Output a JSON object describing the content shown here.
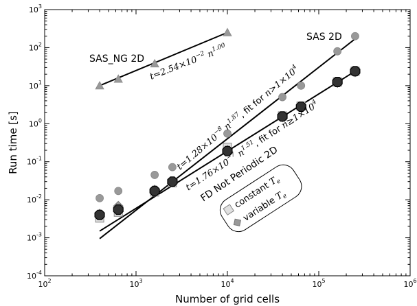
{
  "chart_data": {
    "type": "scatter",
    "title": "",
    "xlabel": "Number of grid cells",
    "ylabel": "Run time [s]",
    "xscale": "log",
    "yscale": "log",
    "xlim": [
      100,
      1000000
    ],
    "ylim": [
      0.0001,
      1000
    ],
    "x_ticks": [
      {
        "base": "10",
        "exp": "2"
      },
      {
        "base": "10",
        "exp": "3"
      },
      {
        "base": "10",
        "exp": "4"
      },
      {
        "base": "10",
        "exp": "5"
      },
      {
        "base": "10",
        "exp": "6"
      }
    ],
    "y_ticks": [
      {
        "base": "10",
        "exp": "-4"
      },
      {
        "base": "10",
        "exp": "-3"
      },
      {
        "base": "10",
        "exp": "-2"
      },
      {
        "base": "10",
        "exp": "-1"
      },
      {
        "base": "10",
        "exp": "0"
      },
      {
        "base": "10",
        "exp": "1"
      },
      {
        "base": "10",
        "exp": "2"
      },
      {
        "base": "10",
        "exp": "3"
      }
    ],
    "grid": false,
    "legend_position": "lower-right-of-center",
    "legend": [
      {
        "label": "constant",
        "symbol": "T",
        "subscript": "e"
      },
      {
        "label": "variable",
        "symbol": "T",
        "subscript": "e"
      }
    ],
    "series": [
      {
        "label_key": "SAS_NG",
        "marker": "triangle",
        "color": "#999999",
        "x": [
          400,
          640,
          1600,
          10000
        ],
        "y": [
          10,
          15,
          38,
          250
        ]
      },
      {
        "label_key": "SAS",
        "marker": "circle",
        "color": "#999999",
        "x": [
          400,
          640,
          1600,
          2500,
          10000,
          40000,
          64000,
          160000,
          250000
        ],
        "y": [
          0.011,
          0.017,
          0.045,
          0.072,
          0.55,
          5,
          10,
          80,
          200
        ]
      },
      {
        "label_key": "constant",
        "marker": "square",
        "color": "#e0e0e0",
        "x": [
          400,
          640,
          1600,
          2500,
          10000,
          40000,
          64000,
          160000,
          250000
        ],
        "y": [
          0.0033,
          0.0047,
          0.016,
          0.028,
          0.24,
          1.6,
          2.9,
          12.5,
          24
        ]
      },
      {
        "label_key": "variable",
        "marker": "diamond",
        "color": "#999999",
        "x": [
          400,
          640,
          1600,
          2500,
          10000,
          40000,
          64000,
          160000,
          250000
        ],
        "y": [
          0.0042,
          0.0068,
          0.018,
          0.029,
          0.2,
          1.5,
          2.7,
          12,
          23
        ]
      },
      {
        "label_key": "FD",
        "marker": "octagon",
        "color": "#333333",
        "x": [
          400,
          640,
          1600,
          2500,
          10000,
          40000,
          64000,
          160000,
          250000
        ],
        "y": [
          0.004,
          0.0055,
          0.017,
          0.03,
          0.19,
          1.55,
          2.8,
          12.5,
          24
        ]
      }
    ],
    "fit_lines": [
      {
        "x": [
          400,
          10000
        ],
        "y": [
          10,
          250
        ]
      },
      {
        "x": [
          400,
          250000
        ],
        "y": [
          0.00095,
          170
        ]
      },
      {
        "x": [
          400,
          250000
        ],
        "y": [
          0.0015,
          24
        ]
      }
    ],
    "annotations": {
      "sas_ng": "SAS_NG 2D",
      "sas": "SAS 2D",
      "fd": "FD Not Periodic 2D",
      "fit_sas_ng": {
        "lhs": "t",
        "coef": "2.54",
        "times": "×",
        "base": "10",
        "exp": "−2",
        "var": "n",
        "power": "1.00"
      },
      "fit_sas": {
        "lhs": "t",
        "coef": "1.28",
        "times": "×",
        "base": "10",
        "exp": "−8",
        "var": "n",
        "power": "1.87",
        "suffix": ", fit for",
        "cond_var": "n",
        "cond_op": ">",
        "cond_coef": "1",
        "cond_times": "×",
        "cond_base": "10",
        "cond_exp": "4"
      },
      "fit_fd": {
        "lhs": "t",
        "coef": "1.76",
        "times": "×",
        "base": "10",
        "exp": "−7",
        "var": "n",
        "power": "1.51",
        "suffix": ", fit for",
        "cond_var": "n",
        "cond_op": "≥",
        "cond_coef": "1",
        "cond_times": "×",
        "cond_base": "10",
        "cond_exp": "4"
      }
    }
  }
}
